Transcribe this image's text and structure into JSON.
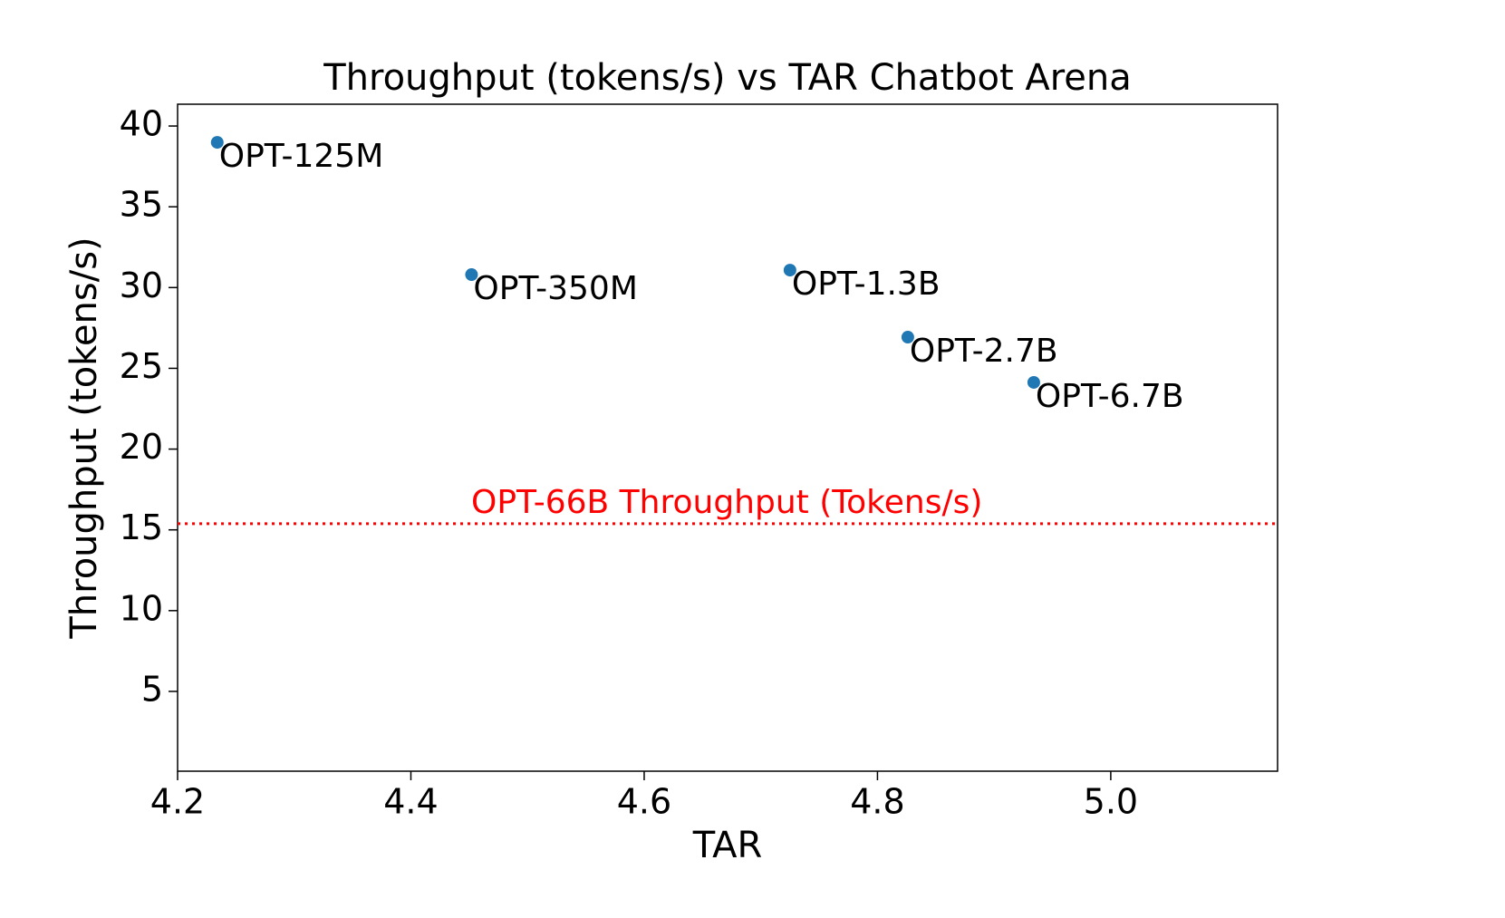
{
  "chart_data": {
    "type": "scatter",
    "title": "Throughput (tokens/s) vs TAR Chatbot Arena",
    "xlabel": "TAR",
    "ylabel": "Throughput (tokens/s)",
    "labels": [
      "OPT-125M",
      "OPT-350M",
      "OPT-1.3B",
      "OPT-2.7B",
      "OPT-6.7B"
    ],
    "x": [
      4.234,
      4.452,
      4.725,
      4.826,
      4.934
    ],
    "values": [
      38.99,
      30.8,
      31.08,
      26.93,
      24.13
    ],
    "color": "#1f77b4",
    "hline": {
      "value": 15.38,
      "label": "OPT-66B Throughput (Tokens/s)",
      "color": "#ff0000"
    },
    "xlim": [
      4.2,
      5.143
    ],
    "ylim": [
      0.06,
      41.35
    ],
    "xticks": [
      4.2,
      4.4,
      4.6,
      4.8,
      {
        "value": 5,
        "label": "5.0"
      }
    ],
    "yticks": [
      5,
      10,
      15,
      20,
      25,
      30,
      35,
      40
    ]
  }
}
